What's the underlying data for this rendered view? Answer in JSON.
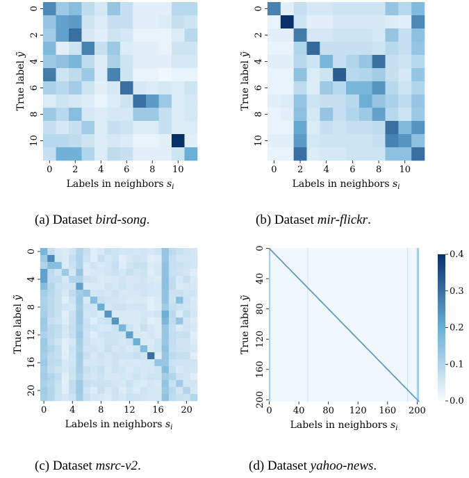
{
  "chart_data": [
    {
      "panel": "a",
      "type": "heatmap",
      "caption": {
        "prefix": "(a) Dataset ",
        "name": "bird-song",
        "suffix": "."
      },
      "xlabel": "Labels in neighbors s_i",
      "ylabel": "True label ỹ",
      "n": 12,
      "xticks": [
        0,
        2,
        4,
        6,
        8,
        10
      ],
      "yticks": [
        0,
        2,
        4,
        6,
        8,
        10
      ],
      "matrix": [
        [
          0.26,
          0.13,
          0.16,
          0.08,
          0.05,
          0.14,
          0.07,
          0.03,
          0.03,
          0.03,
          0.09,
          0.09
        ],
        [
          0.14,
          0.22,
          0.23,
          0.06,
          0.04,
          0.07,
          0.07,
          0.03,
          0.03,
          0.04,
          0.07,
          0.06
        ],
        [
          0.12,
          0.22,
          0.3,
          0.05,
          0.03,
          0.06,
          0.05,
          0.02,
          0.02,
          0.02,
          0.04,
          0.09
        ],
        [
          0.17,
          0.03,
          0.06,
          0.27,
          0.07,
          0.13,
          0.04,
          0.03,
          0.03,
          0.02,
          0.06,
          0.06
        ],
        [
          0.13,
          0.15,
          0.18,
          0.08,
          0.04,
          0.11,
          0.06,
          0.03,
          0.03,
          0.03,
          0.05,
          0.05
        ],
        [
          0.28,
          0.06,
          0.08,
          0.13,
          0.04,
          0.27,
          0.06,
          0.02,
          0.02,
          0.01,
          0.02,
          0.02
        ],
        [
          0.11,
          0.09,
          0.12,
          0.06,
          0.03,
          0.05,
          0.3,
          0.05,
          0.04,
          0.05,
          0.04,
          0.06
        ],
        [
          0.04,
          0.06,
          0.05,
          0.04,
          0.02,
          0.04,
          0.06,
          0.3,
          0.23,
          0.13,
          0.04,
          0.05
        ],
        [
          0.13,
          0.09,
          0.16,
          0.05,
          0.04,
          0.05,
          0.05,
          0.13,
          0.13,
          0.07,
          0.04,
          0.05
        ],
        [
          0.07,
          0.05,
          0.07,
          0.12,
          0.04,
          0.07,
          0.06,
          0.04,
          0.04,
          0.07,
          0.04,
          0.04
        ],
        [
          0.09,
          0.09,
          0.08,
          0.06,
          0.04,
          0.05,
          0.04,
          0.02,
          0.02,
          0.03,
          0.42,
          0.03
        ],
        [
          0.07,
          0.19,
          0.19,
          0.1,
          0.04,
          0.08,
          0.07,
          0.03,
          0.03,
          0.03,
          0.06,
          0.2
        ]
      ]
    },
    {
      "panel": "b",
      "type": "heatmap",
      "caption": {
        "prefix": "(b) Dataset ",
        "name": "mir-flickr",
        "suffix": "."
      },
      "xlabel": "Labels in neighbors s_i",
      "ylabel": "True label ỹ",
      "n": 12,
      "xticks": [
        0,
        2,
        4,
        6,
        8,
        10
      ],
      "yticks": [
        0,
        2,
        4,
        6,
        8,
        10
      ],
      "matrix": [
        [
          0.27,
          0.03,
          0.07,
          0.05,
          0.05,
          0.06,
          0.06,
          0.06,
          0.06,
          0.14,
          0.09,
          0.17
        ],
        [
          0.02,
          0.4,
          0.06,
          0.03,
          0.03,
          0.05,
          0.05,
          0.05,
          0.05,
          0.04,
          0.03,
          0.26
        ],
        [
          0.03,
          0.03,
          0.28,
          0.05,
          0.05,
          0.06,
          0.06,
          0.06,
          0.05,
          0.14,
          0.07,
          0.15
        ],
        [
          0.02,
          0.02,
          0.1,
          0.31,
          0.07,
          0.07,
          0.07,
          0.07,
          0.06,
          0.09,
          0.07,
          0.14
        ],
        [
          0.03,
          0.03,
          0.09,
          0.06,
          0.18,
          0.07,
          0.1,
          0.14,
          0.3,
          0.07,
          0.06,
          0.09
        ],
        [
          0.02,
          0.02,
          0.15,
          0.04,
          0.06,
          0.33,
          0.09,
          0.1,
          0.12,
          0.07,
          0.05,
          0.14
        ],
        [
          0.02,
          0.02,
          0.08,
          0.04,
          0.13,
          0.09,
          0.18,
          0.18,
          0.24,
          0.09,
          0.06,
          0.1
        ],
        [
          0.03,
          0.04,
          0.14,
          0.06,
          0.07,
          0.07,
          0.09,
          0.2,
          0.14,
          0.11,
          0.08,
          0.14
        ],
        [
          0.02,
          0.03,
          0.15,
          0.05,
          0.14,
          0.07,
          0.1,
          0.13,
          0.22,
          0.09,
          0.06,
          0.13
        ],
        [
          0.02,
          0.02,
          0.21,
          0.04,
          0.07,
          0.06,
          0.07,
          0.07,
          0.08,
          0.3,
          0.17,
          0.24
        ],
        [
          0.03,
          0.03,
          0.23,
          0.05,
          0.06,
          0.06,
          0.06,
          0.06,
          0.07,
          0.27,
          0.24,
          0.15
        ],
        [
          0.02,
          0.02,
          0.3,
          0.04,
          0.05,
          0.05,
          0.06,
          0.06,
          0.06,
          0.15,
          0.15,
          0.3
        ]
      ]
    },
    {
      "panel": "c",
      "type": "heatmap",
      "caption": {
        "prefix": "(c) Dataset ",
        "name": "msrc-v2",
        "suffix": "."
      },
      "xlabel": "Labels in neighbors s_i",
      "ylabel": "True label ỹ",
      "n": 22,
      "xticks": [
        0,
        4,
        8,
        12,
        16,
        20
      ],
      "yticks": [
        0,
        4,
        8,
        12,
        16,
        20
      ],
      "diag": [
        0.18,
        0.26,
        0.16,
        0.13,
        0.1,
        0.22,
        0.14,
        0.16,
        0.2,
        0.24,
        0.24,
        0.18,
        0.22,
        0.2,
        0.17,
        0.3,
        0.14,
        0.16,
        0.1,
        0.12,
        0.1,
        0.1
      ],
      "col_bg": [
        0.1,
        0.07,
        0.05,
        0.03,
        0.05,
        0.1,
        0.04,
        0.03,
        0.04,
        0.04,
        0.04,
        0.03,
        0.04,
        0.04,
        0.04,
        0.03,
        0.03,
        0.12,
        0.06,
        0.04,
        0.05,
        0.03
      ],
      "extras": [
        [
          3,
          0,
          0.22
        ],
        [
          4,
          0,
          0.22
        ],
        [
          5,
          0,
          0.16
        ],
        [
          2,
          1,
          0.16
        ],
        [
          9,
          17,
          0.2
        ],
        [
          10,
          17,
          0.18
        ],
        [
          15,
          17,
          0.14
        ],
        [
          7,
          19,
          0.16
        ],
        [
          10,
          19,
          0.14
        ],
        [
          3,
          5,
          0.14
        ]
      ]
    },
    {
      "panel": "d",
      "type": "heatmap",
      "caption": {
        "prefix": "(d) Dataset ",
        "name": "yahoo-news",
        "suffix": "."
      },
      "xlabel": "Labels in neighbors s_i",
      "ylabel": "True label ỹ",
      "n": 203,
      "xticks": [
        0,
        40,
        80,
        120,
        160,
        200
      ],
      "yticks": [
        0,
        40,
        80,
        120,
        160,
        200
      ],
      "xticklabels": [
        "0",
        "40",
        "80",
        "120",
        "160",
        "200"
      ],
      "yticklabels": [
        "0",
        "40",
        "80",
        "120",
        "160",
        "200"
      ],
      "diag_value": 0.25,
      "bright_columns": [
        0,
        1,
        200,
        201,
        202
      ],
      "faint_columns": [
        52,
        187
      ],
      "colorbar": {
        "vmin": 0.0,
        "vmax": 0.4,
        "ticks": [
          "0.0",
          "0.1",
          "0.2",
          "0.3",
          "0.4"
        ]
      }
    }
  ],
  "colors": {
    "low": "#f7fbff",
    "mid": "#6baed6",
    "high": "#08306b"
  }
}
